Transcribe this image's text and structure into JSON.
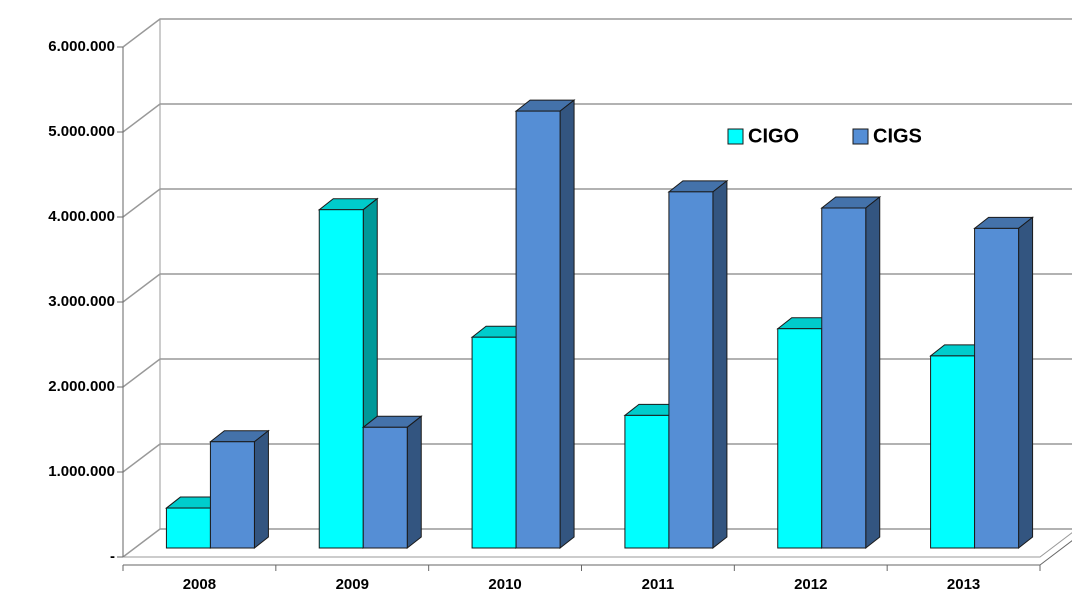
{
  "chart_data": {
    "type": "bar3d",
    "categories": [
      "2008",
      "2009",
      "2010",
      "2011",
      "2012",
      "2013"
    ],
    "series": [
      {
        "name": "CIGO",
        "color": "#00ffff",
        "values": [
          470000,
          3980000,
          2480000,
          1560000,
          2580000,
          2260000
        ]
      },
      {
        "name": "CIGS",
        "color": "#558ed5",
        "values": [
          1250000,
          1420000,
          5140000,
          4190000,
          4000000,
          3760000
        ]
      }
    ],
    "ylim": [
      0,
      6000000
    ],
    "yticks": [
      {
        "value": 0,
        "label": "-"
      },
      {
        "value": 1000000,
        "label": "1.000.000"
      },
      {
        "value": 2000000,
        "label": "2.000.000"
      },
      {
        "value": 3000000,
        "label": "3.000.000"
      },
      {
        "value": 4000000,
        "label": "4.000.000"
      },
      {
        "value": 5000000,
        "label": "5.000.000"
      },
      {
        "value": 6000000,
        "label": "6.000.000"
      }
    ],
    "grid": true,
    "legend": "top-right"
  }
}
